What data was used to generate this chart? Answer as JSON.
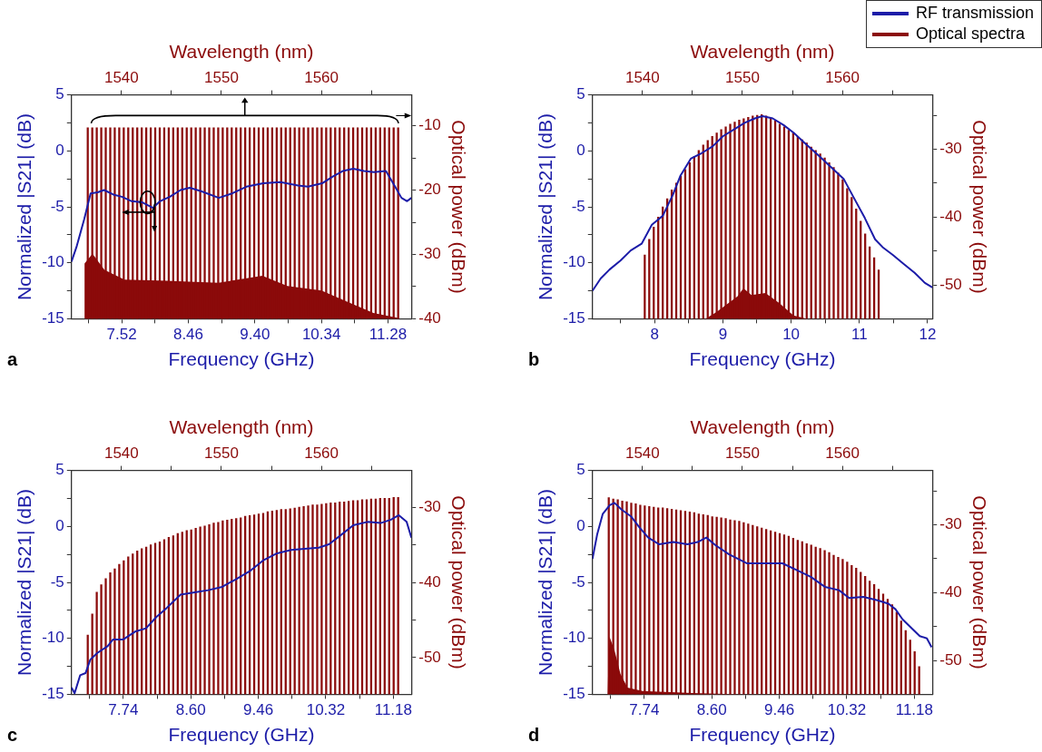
{
  "chart_data": [
    {
      "type": "line",
      "x2label": "Frequency (GHz)",
      "ylabel": "Normalized |S21| (dB)",
      "xlabel": "Wavelength (nm)",
      "y2label": "Optical power (dBm)",
      "grid": false,
      "annotations": [
        "a"
      ],
      "x2lim": [
        6.81,
        11.61
      ],
      "x2ticks": [
        {
          "value": 7.05,
          "label": null
        },
        7.52,
        {
          "value": 7.99,
          "label": null
        },
        8.46,
        {
          "value": 8.93,
          "label": null
        },
        {
          "value": 9.4,
          "label": "9.40"
        },
        {
          "value": 9.87,
          "label": null
        },
        10.34,
        {
          "value": 10.81,
          "label": null
        },
        11.28
      ],
      "xlim": [
        1535,
        1569
      ],
      "xticks": [
        1540,
        {
          "value": 1545,
          "label": null
        },
        1550,
        {
          "value": 1555,
          "label": null
        },
        1560,
        {
          "value": 1565,
          "label": null
        }
      ],
      "ylim": [
        -15,
        5
      ],
      "yticks": [
        -15,
        {
          "value": -12.5,
          "label": null
        },
        -10,
        {
          "value": -7.5,
          "label": null
        },
        -5,
        {
          "value": -2.5,
          "label": null
        },
        0,
        {
          "value": 2.5,
          "label": null
        },
        5
      ],
      "y2lim": [
        -40,
        -5.2
      ],
      "y2ticks": [
        -40,
        {
          "value": -35,
          "label": null
        },
        -30,
        {
          "value": -25,
          "label": null
        },
        -20,
        {
          "value": -15,
          "label": null
        },
        -10
      ],
      "series": [
        {
          "type": "area",
          "axis": "y2",
          "color": "#8b0a0a",
          "x": [
            1536.3,
            1536.3,
            1537.1,
            1538.3,
            1540.3,
            1544.5,
            1549.7,
            1554.1,
            1556.6,
            1560,
            1563.4,
            1565.2,
            1567.8,
            1567.8
          ],
          "values": [
            -40,
            -31.4,
            -29.9,
            -32.4,
            -33.9,
            -34.1,
            -34.4,
            -33.3,
            -34.9,
            -35.6,
            -37.9,
            -39.1,
            -39.9,
            -40
          ]
        },
        {
          "type": "bar",
          "axis": "y2",
          "color": "#8b0a0a",
          "x": [
            1536.7,
            1537.15,
            1537.6,
            1538.05,
            1538.5,
            1538.95,
            1539.4,
            1539.85,
            1540.3,
            1540.75,
            1541.2,
            1541.65,
            1542.1,
            1542.55,
            1543,
            1543.45,
            1543.9,
            1544.35,
            1544.8,
            1545.25,
            1545.7,
            1546.15,
            1546.6,
            1547.05,
            1547.5,
            1547.95,
            1548.4,
            1548.85,
            1549.3,
            1549.75,
            1550.2,
            1550.65,
            1551.1,
            1551.55,
            1552,
            1552.45,
            1552.9,
            1553.35,
            1553.8,
            1554.25,
            1554.7,
            1555.15,
            1555.6,
            1556.05,
            1556.5,
            1556.95,
            1557.4,
            1557.85,
            1558.3,
            1558.75,
            1559.2,
            1559.65,
            1560.1,
            1560.55,
            1561,
            1561.45,
            1561.9,
            1562.35,
            1562.8,
            1563.25,
            1563.7,
            1564.15,
            1564.6,
            1565.05,
            1565.5,
            1565.95,
            1566.4,
            1566.85,
            1567.3,
            1567.75
          ],
          "base": [
            -40,
            -40,
            -40,
            -40,
            -40,
            -40,
            -40,
            -40,
            -40,
            -40,
            -40,
            -40,
            -40,
            -40,
            -40,
            -40,
            -40,
            -40,
            -40,
            -40,
            -40,
            -40,
            -40,
            -40,
            -40,
            -40,
            -40,
            -40,
            -40,
            -40,
            -40,
            -40,
            -40,
            -40,
            -40,
            -40,
            -40,
            -40,
            -40,
            -40,
            -40,
            -40,
            -40,
            -40,
            -40,
            -40,
            -40,
            -40,
            -40,
            -40,
            -40,
            -40,
            -40,
            -40,
            -40,
            -40,
            -40,
            -40,
            -40,
            -40,
            -40,
            -40,
            -40,
            -40,
            -40,
            -40,
            -40,
            -40,
            -40,
            -40
          ],
          "values": [
            29.7,
            29.7,
            29.7,
            29.7,
            29.7,
            29.7,
            29.7,
            29.7,
            29.7,
            29.7,
            29.7,
            29.7,
            29.7,
            29.7,
            29.7,
            29.7,
            29.7,
            29.7,
            29.7,
            29.7,
            29.7,
            29.7,
            29.7,
            29.7,
            29.7,
            29.7,
            29.7,
            29.7,
            29.7,
            29.7,
            29.7,
            29.7,
            29.7,
            29.7,
            29.7,
            29.7,
            29.7,
            29.7,
            29.7,
            29.7,
            29.7,
            29.7,
            29.7,
            29.7,
            29.7,
            29.7,
            29.7,
            29.7,
            29.7,
            29.7,
            29.7,
            29.7,
            29.7,
            29.7,
            29.7,
            29.7,
            29.7,
            29.7,
            29.7,
            29.7,
            29.7,
            29.7,
            29.7,
            29.7,
            29.7,
            29.7,
            29.7,
            29.7,
            29.7,
            29.7
          ]
        },
        {
          "axis": "x2",
          "color": "#1c1ca8",
          "x": [
            6.81,
            6.88,
            6.99,
            7.08,
            7.18,
            7.27,
            7.4,
            7.52,
            7.66,
            7.81,
            7.96,
            8.06,
            8.2,
            8.35,
            8.48,
            8.64,
            8.89,
            9.08,
            9.28,
            9.52,
            9.76,
            10.01,
            10.15,
            10.35,
            10.5,
            10.64,
            10.79,
            10.94,
            11.08,
            11.25,
            11.38,
            11.47,
            11.55,
            11.61
          ],
          "values": [
            -9.9,
            -8.6,
            -6.1,
            -3.8,
            -3.7,
            -3.5,
            -3.9,
            -4.1,
            -4.5,
            -4.6,
            -5.1,
            -4.5,
            -4.1,
            -3.5,
            -3.3,
            -3.6,
            -4.2,
            -3.8,
            -3.2,
            -2.9,
            -2.8,
            -3.1,
            -3.2,
            -2.9,
            -2.3,
            -1.8,
            -1.6,
            -1.8,
            -1.9,
            -1.8,
            -3.2,
            -4.2,
            -4.5,
            -4.2
          ]
        }
      ]
    },
    {
      "type": "line",
      "x2label": "Frequency (GHz)",
      "ylabel": "Normalized |S21| (dB)",
      "xlabel": "Wavelength (nm)",
      "y2label": "Optical power (dBm)",
      "grid": false,
      "legend": "top right",
      "annotations": [
        "b"
      ],
      "x2lim": [
        7.09,
        12.07
      ],
      "x2ticks": [
        {
          "value": 7.5,
          "label": null
        },
        8,
        {
          "value": 8.5,
          "label": null
        },
        9,
        {
          "value": 9.5,
          "label": null
        },
        10,
        {
          "value": 10.5,
          "label": null
        },
        11,
        {
          "value": 11.5,
          "label": null
        },
        12
      ],
      "xlim": [
        1535,
        1569
      ],
      "xticks": [
        1540,
        {
          "value": 1545,
          "label": null
        },
        1550,
        {
          "value": 1555,
          "label": null
        },
        1560,
        {
          "value": 1565,
          "label": null
        }
      ],
      "ylim": [
        -15,
        5
      ],
      "yticks": [
        -15,
        {
          "value": -12.5,
          "label": null
        },
        -10,
        {
          "value": -7.5,
          "label": null
        },
        -5,
        {
          "value": -2.5,
          "label": null
        },
        0,
        {
          "value": 2.5,
          "label": null
        },
        5
      ],
      "y2lim": [
        -55,
        -22
      ],
      "y2ticks": [
        -50,
        {
          "value": -45,
          "label": null
        },
        -40,
        {
          "value": -35,
          "label": null
        },
        -30,
        {
          "value": -25,
          "label": null
        }
      ],
      "series": [
        {
          "type": "area",
          "axis": "y2",
          "color": "#8b0a0a",
          "x": [
            1546.3,
            1547.4,
            1549.5,
            1550.1,
            1550.9,
            1552.3,
            1553.7,
            1555.1,
            1556.5
          ],
          "values": [
            -55,
            -54,
            -51.7,
            -50.5,
            -51.5,
            -51.2,
            -52.7,
            -54.5,
            -55
          ]
        },
        {
          "type": "bar",
          "axis": "y2",
          "name": "Optical spectra",
          "color": "#8b0a0a",
          "x": [
            1540.3,
            1540.75,
            1541.2,
            1541.65,
            1542.1,
            1542.55,
            1543,
            1543.45,
            1543.9,
            1544.35,
            1544.8,
            1545.25,
            1545.7,
            1546.15,
            1546.6,
            1547.05,
            1547.5,
            1547.95,
            1548.4,
            1548.85,
            1549.3,
            1549.75,
            1550.2,
            1550.65,
            1551.1,
            1551.55,
            1552,
            1552.45,
            1552.9,
            1553.35,
            1553.8,
            1554.25,
            1554.7,
            1555.15,
            1555.6,
            1556.05,
            1556.5,
            1556.95,
            1557.4,
            1557.85,
            1558.3,
            1558.75,
            1559.2,
            1559.65,
            1560.1,
            1560.55,
            1561,
            1561.45,
            1561.9,
            1562.35,
            1562.8,
            1563.25,
            1563.7
          ],
          "base": [
            -55,
            -55,
            -55,
            -55,
            -55,
            -55,
            -55,
            -55,
            -55,
            -55,
            -55,
            -55,
            -55,
            -55,
            -55,
            -55,
            -55,
            -55,
            -55,
            -55,
            -55,
            -55,
            -55,
            -55,
            -55,
            -55,
            -55,
            -55,
            -55,
            -55,
            -55,
            -55,
            -55,
            -55,
            -55,
            -55,
            -55,
            -55,
            -55,
            -55,
            -55,
            -55,
            -55,
            -55,
            -55,
            -55,
            -55,
            -55,
            -55,
            -55,
            -55,
            -55,
            -55
          ],
          "values": [
            9.4,
            11.7,
            13.5,
            15.0,
            16.5,
            17.7,
            19.0,
            20.0,
            21.0,
            22.0,
            23.0,
            23.9,
            24.8,
            25.6,
            26.3,
            26.9,
            27.4,
            27.9,
            28.3,
            28.7,
            29.0,
            29.3,
            29.5,
            29.7,
            29.9,
            30.0,
            30.1,
            29.9,
            29.6,
            29.2,
            28.7,
            28.3,
            27.8,
            27.4,
            26.9,
            26.4,
            25.9,
            25.3,
            24.8,
            24.3,
            23.7,
            23.0,
            22.3,
            21.5,
            20.5,
            19.2,
            17.9,
            16.2,
            14.4,
            12.5,
            10.6,
            9.0,
            7.2
          ]
        },
        {
          "axis": "x2",
          "name": "RF transmission",
          "color": "#1c1ca8",
          "x": [
            7.09,
            7.21,
            7.34,
            7.5,
            7.65,
            7.81,
            7.96,
            8.12,
            8.27,
            8.38,
            8.53,
            8.69,
            8.85,
            9,
            9.16,
            9.32,
            9.47,
            9.58,
            9.73,
            9.89,
            10.04,
            10.2,
            10.4,
            10.61,
            10.77,
            10.92,
            11.08,
            11.23,
            11.34,
            11.49,
            11.65,
            11.81,
            11.96,
            12.07
          ],
          "values": [
            -12.5,
            -11.4,
            -10.6,
            -9.8,
            -8.9,
            -8.3,
            -6.6,
            -5.8,
            -3.9,
            -2.2,
            -0.7,
            -0.2,
            0.4,
            1.3,
            1.9,
            2.5,
            2.9,
            3.1,
            2.9,
            2.3,
            1.6,
            0.7,
            -0.4,
            -1.6,
            -2.5,
            -4.2,
            -6.0,
            -7.9,
            -8.6,
            -9.3,
            -10.1,
            -10.9,
            -11.8,
            -12.2
          ]
        }
      ]
    },
    {
      "type": "line",
      "x2label": "Frequency (GHz)",
      "ylabel": "Normalized |S21| (dB)",
      "xlabel": "Wavelength (nm)",
      "y2label": "Optical power (dBm)",
      "grid": false,
      "annotations": [
        "c"
      ],
      "x2lim": [
        7.08,
        11.41
      ],
      "x2ticks": [
        {
          "value": 7.31,
          "label": null
        },
        7.74,
        {
          "value": 8.17,
          "label": null
        },
        {
          "value": 8.6,
          "label": "8.60"
        },
        {
          "value": 9.03,
          "label": null
        },
        9.46,
        {
          "value": 9.89,
          "label": null
        },
        10.32,
        {
          "value": 10.75,
          "label": null
        },
        11.18
      ],
      "xlim": [
        1535,
        1569
      ],
      "xticks": [
        1540,
        {
          "value": 1545,
          "label": null
        },
        1550,
        {
          "value": 1555,
          "label": null
        },
        1560,
        {
          "value": 1565,
          "label": null
        }
      ],
      "ylim": [
        -15,
        5
      ],
      "yticks": [
        -15,
        {
          "value": -12.5,
          "label": null
        },
        -10,
        {
          "value": -7.5,
          "label": null
        },
        -5,
        {
          "value": -2.5,
          "label": null
        },
        0,
        {
          "value": 2.5,
          "label": null
        },
        5
      ],
      "y2lim": [
        -54.9,
        -25.1
      ],
      "y2ticks": [
        -50,
        {
          "value": -45,
          "label": null
        },
        -40,
        {
          "value": -35,
          "label": null
        },
        -30
      ],
      "series": [
        {
          "type": "bar",
          "axis": "y2",
          "color": "#8b0a0a",
          "x": [
            1536.7,
            1537.15,
            1537.6,
            1538.05,
            1538.5,
            1538.95,
            1539.4,
            1539.85,
            1540.3,
            1540.75,
            1541.2,
            1541.65,
            1542.1,
            1542.55,
            1543,
            1543.45,
            1543.9,
            1544.35,
            1544.8,
            1545.25,
            1545.7,
            1546.15,
            1546.6,
            1547.05,
            1547.5,
            1547.95,
            1548.4,
            1548.85,
            1549.3,
            1549.75,
            1550.2,
            1550.65,
            1551.1,
            1551.55,
            1552,
            1552.45,
            1552.9,
            1553.35,
            1553.8,
            1554.25,
            1554.7,
            1555.15,
            1555.6,
            1556.05,
            1556.5,
            1556.95,
            1557.4,
            1557.85,
            1558.3,
            1558.75,
            1559.2,
            1559.65,
            1560.1,
            1560.55,
            1561,
            1561.45,
            1561.9,
            1562.35,
            1562.8,
            1563.25,
            1563.7,
            1564.15,
            1564.6,
            1565.05,
            1565.5,
            1565.95,
            1566.4,
            1566.85,
            1567.3,
            1567.75
          ],
          "base": [
            -54.9,
            -54.9,
            -54.9,
            -54.9,
            -54.9,
            -54.9,
            -54.9,
            -54.9,
            -54.9,
            -54.9,
            -54.9,
            -54.9,
            -54.9,
            -54.9,
            -54.9,
            -54.9,
            -54.9,
            -54.9,
            -54.9,
            -54.9,
            -54.9,
            -54.9,
            -54.9,
            -54.9,
            -54.9,
            -54.9,
            -54.9,
            -54.9,
            -54.9,
            -54.9,
            -54.9,
            -54.9,
            -54.9,
            -54.9,
            -54.9,
            -54.9,
            -54.9,
            -54.9,
            -54.9,
            -54.9,
            -54.9,
            -54.9,
            -54.9,
            -54.9,
            -54.9,
            -54.9,
            -54.9,
            -54.9,
            -54.9,
            -54.9,
            -54.9,
            -54.9,
            -54.9,
            -54.9,
            -54.9,
            -54.9,
            -54.9,
            -54.9,
            -54.9,
            -54.9,
            -54.9,
            -54.9,
            -54.9,
            -54.9,
            -54.9,
            -54.9,
            -54.9,
            -54.9,
            -54.9,
            -54.9
          ],
          "values": [
            7.9,
            10.7,
            13.6,
            14.6,
            15.4,
            16.2,
            16.7,
            17.3,
            17.8,
            18.3,
            18.7,
            19.1,
            19.4,
            19.6,
            19.9,
            20.1,
            20.3,
            20.6,
            20.9,
            21.1,
            21.4,
            21.6,
            21.8,
            21.9,
            22.1,
            22.3,
            22.4,
            22.6,
            22.8,
            22.9,
            23.1,
            23.2,
            23.3,
            23.4,
            23.5,
            23.7,
            23.8,
            23.9,
            24.0,
            24.1,
            24.3,
            24.4,
            24.5,
            24.6,
            24.6,
            24.7,
            24.8,
            24.9,
            25.0,
            25.1,
            25.2,
            25.2,
            25.3,
            25.4,
            25.5,
            25.5,
            25.6,
            25.6,
            25.7,
            25.8,
            25.8,
            25.9,
            25.9,
            26.0,
            26.0,
            26.1,
            26.1,
            26.1,
            26.2,
            26.2
          ]
        },
        {
          "axis": "x2",
          "color": "#1c1ca8",
          "x": [
            7.08,
            7.12,
            7.19,
            7.26,
            7.32,
            7.41,
            7.54,
            7.61,
            7.74,
            7.89,
            8.03,
            8.16,
            8.29,
            8.47,
            8.65,
            8.82,
            9,
            9.18,
            9.35,
            9.53,
            9.7,
            9.88,
            10.05,
            10.23,
            10.36,
            10.49,
            10.67,
            10.85,
            11.02,
            11.15,
            11.25,
            11.35,
            11.41
          ],
          "values": [
            -14.4,
            -14.9,
            -13.3,
            -13.1,
            -11.9,
            -11.3,
            -10.7,
            -10.1,
            -10.1,
            -9.4,
            -9.1,
            -8.1,
            -7.3,
            -6.1,
            -5.9,
            -5.7,
            -5.4,
            -4.7,
            -4.0,
            -3.0,
            -2.4,
            -2.1,
            -2.0,
            -1.9,
            -1.6,
            -0.9,
            0.1,
            0.4,
            0.3,
            0.6,
            1.0,
            0.4,
            -1.0
          ]
        }
      ]
    },
    {
      "type": "line",
      "x2label": "Frequency (GHz)",
      "ylabel": "Normalized |S21| (dB)",
      "xlabel": "Wavelength (nm)",
      "y2label": "Optical power (dBm)",
      "grid": false,
      "annotations": [
        "d"
      ],
      "x2lim": [
        7.08,
        11.41
      ],
      "x2ticks": [
        {
          "value": 7.31,
          "label": null
        },
        7.74,
        {
          "value": 8.17,
          "label": null
        },
        {
          "value": 8.6,
          "label": "8.60"
        },
        {
          "value": 9.03,
          "label": null
        },
        9.46,
        {
          "value": 9.89,
          "label": null
        },
        10.32,
        {
          "value": 10.75,
          "label": null
        },
        11.18
      ],
      "xlim": [
        1535,
        1569
      ],
      "xticks": [
        1540,
        {
          "value": 1545,
          "label": null
        },
        1550,
        {
          "value": 1555,
          "label": null
        },
        1560,
        {
          "value": 1565,
          "label": null
        }
      ],
      "ylim": [
        -15,
        5
      ],
      "yticks": [
        -15,
        {
          "value": -12.5,
          "label": null
        },
        -10,
        {
          "value": -7.5,
          "label": null
        },
        -5,
        {
          "value": -2.5,
          "label": null
        },
        0,
        {
          "value": 2.5,
          "label": null
        },
        5
      ],
      "y2lim": [
        -55,
        -22
      ],
      "y2ticks": [
        -50,
        {
          "value": -45,
          "label": null
        },
        -40,
        {
          "value": -35,
          "label": null
        },
        -30,
        {
          "value": -25,
          "label": null
        }
      ],
      "series": [
        {
          "type": "area",
          "axis": "y2",
          "color": "#8b0a0a",
          "x": [
            1536.5,
            1536.7,
            1537.2,
            1537.8,
            1538.5,
            1540,
            1545,
            1550
          ],
          "values": [
            -55,
            -46.5,
            -48.5,
            -52,
            -54,
            -54.5,
            -54.8,
            -55
          ]
        },
        {
          "type": "bar",
          "axis": "y2",
          "color": "#8b0a0a",
          "x": [
            1536.7,
            1537.15,
            1537.6,
            1538.05,
            1538.5,
            1538.95,
            1539.4,
            1539.85,
            1540.3,
            1540.75,
            1541.2,
            1541.65,
            1542.1,
            1542.55,
            1543,
            1543.45,
            1543.9,
            1544.35,
            1544.8,
            1545.25,
            1545.7,
            1546.15,
            1546.6,
            1547.05,
            1547.5,
            1547.95,
            1548.4,
            1548.85,
            1549.3,
            1549.75,
            1550.2,
            1550.65,
            1551.1,
            1551.55,
            1552,
            1552.45,
            1552.9,
            1553.35,
            1553.8,
            1554.25,
            1554.7,
            1555.15,
            1555.6,
            1556.05,
            1556.5,
            1556.95,
            1557.4,
            1557.85,
            1558.3,
            1558.75,
            1559.2,
            1559.65,
            1560.1,
            1560.55,
            1561,
            1561.45,
            1561.9,
            1562.35,
            1562.8,
            1563.25,
            1563.7,
            1564.15,
            1564.6,
            1565.05,
            1565.5,
            1565.95,
            1566.4,
            1566.85,
            1567.3,
            1567.75
          ],
          "base": [
            -55,
            -55,
            -55,
            -55,
            -55,
            -55,
            -55,
            -55,
            -55,
            -55,
            -55,
            -55,
            -55,
            -55,
            -55,
            -55,
            -55,
            -55,
            -55,
            -55,
            -55,
            -55,
            -55,
            -55,
            -55,
            -55,
            -55,
            -55,
            -55,
            -55,
            -55,
            -55,
            -55,
            -55,
            -55,
            -55,
            -55,
            -55,
            -55,
            -55,
            -55,
            -55,
            -55,
            -55,
            -55,
            -55,
            -55,
            -55,
            -55,
            -55,
            -55,
            -55,
            -55,
            -55,
            -55,
            -55,
            -55,
            -55,
            -55,
            -55,
            -55,
            -55,
            -55,
            -55,
            -55,
            -55,
            -55,
            -55,
            -55,
            -55
          ],
          "values": [
            29.0,
            28.8,
            28.7,
            28.5,
            28.4,
            28.2,
            28.1,
            27.9,
            27.8,
            27.7,
            27.6,
            27.5,
            27.5,
            27.4,
            27.3,
            27.2,
            27.1,
            27.0,
            26.9,
            26.8,
            26.6,
            26.5,
            26.4,
            26.2,
            26.1,
            26.0,
            25.9,
            25.7,
            25.6,
            25.5,
            25.3,
            25.1,
            24.9,
            24.7,
            24.5,
            24.3,
            24.1,
            23.9,
            23.7,
            23.5,
            23.3,
            23.0,
            22.7,
            22.5,
            22.2,
            22.0,
            21.7,
            21.5,
            21.2,
            20.9,
            20.5,
            20.2,
            19.9,
            19.5,
            19.0,
            18.6,
            18.0,
            17.4,
            16.7,
            16.2,
            15.5,
            14.8,
            14.0,
            13.2,
            12.1,
            10.8,
            9.4,
            8.0,
            6.3,
            4.1
          ]
        },
        {
          "axis": "x2",
          "color": "#1c1ca8",
          "x": [
            7.08,
            7.14,
            7.21,
            7.3,
            7.36,
            7.45,
            7.57,
            7.68,
            7.79,
            7.93,
            8.11,
            8.29,
            8.42,
            8.53,
            8.65,
            8.82,
            9.05,
            9.27,
            9.5,
            9.68,
            9.86,
            10.04,
            10.22,
            10.35,
            10.53,
            10.71,
            10.85,
            10.94,
            11.03,
            11.16,
            11.25,
            11.34,
            11.4
          ],
          "values": [
            -2.9,
            -0.7,
            1.1,
            1.9,
            2.1,
            1.5,
            0.9,
            -0.1,
            -1.0,
            -1.6,
            -1.4,
            -1.6,
            -1.4,
            -1.0,
            -1.7,
            -2.5,
            -3.3,
            -3.3,
            -3.3,
            -3.9,
            -4.5,
            -5.4,
            -5.7,
            -6.4,
            -6.3,
            -6.6,
            -6.9,
            -7.4,
            -8.3,
            -9.2,
            -9.8,
            -10.0,
            -10.8
          ]
        }
      ]
    }
  ]
}
